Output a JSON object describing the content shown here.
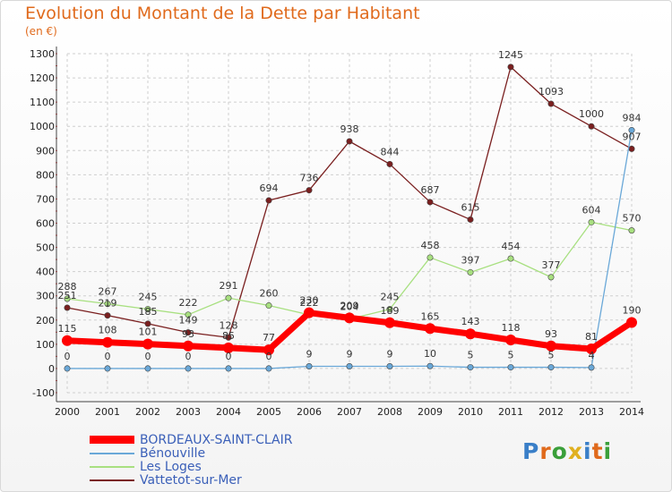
{
  "header": {
    "title": "Evolution du Montant de la Dette par Habitant",
    "unit": "(en €)"
  },
  "logo": {
    "text": "Proxiti"
  },
  "chart_data": {
    "type": "line",
    "title": "Evolution du Montant de la Dette par Habitant",
    "subtitle": "(en €)",
    "xlabel": "",
    "ylabel": "",
    "ylim": [
      -100,
      1300
    ],
    "y_ticks": [
      -100,
      0,
      100,
      200,
      300,
      400,
      500,
      600,
      700,
      800,
      900,
      1000,
      1100,
      1200,
      1300
    ],
    "grid": "horizontal dashed",
    "legend_position": "bottom-left",
    "x": [
      "2000",
      "2001",
      "2002",
      "2003",
      "2004",
      "2005",
      "2006",
      "2007",
      "2008",
      "2009",
      "2010",
      "2011",
      "2012",
      "2013",
      "2014"
    ],
    "series": [
      {
        "name": "Vattetot-sur-Mer",
        "color": "#7a1f1f",
        "width": 1.3,
        "values": [
          251,
          219,
          185,
          149,
          128,
          694,
          736,
          938,
          844,
          687,
          615,
          1245,
          1093,
          1000,
          907
        ]
      },
      {
        "name": "Les Loges",
        "color": "#a8e080",
        "width": 1.3,
        "values": [
          288,
          267,
          245,
          222,
          291,
          260,
          222,
          204,
          245,
          458,
          397,
          454,
          377,
          604,
          570
        ]
      },
      {
        "name": "Bénouville",
        "color": "#6aa8d8",
        "width": 1.3,
        "values": [
          0,
          0,
          0,
          0,
          0,
          0,
          9,
          9,
          9,
          10,
          5,
          5,
          5,
          4,
          984
        ]
      },
      {
        "name": "BORDEAUX-SAINT-CLAIR",
        "color": "#ff0000",
        "width": 7,
        "values": [
          115,
          108,
          101,
          93,
          85,
          77,
          230,
          209,
          189,
          165,
          143,
          118,
          93,
          81,
          190
        ]
      }
    ]
  }
}
